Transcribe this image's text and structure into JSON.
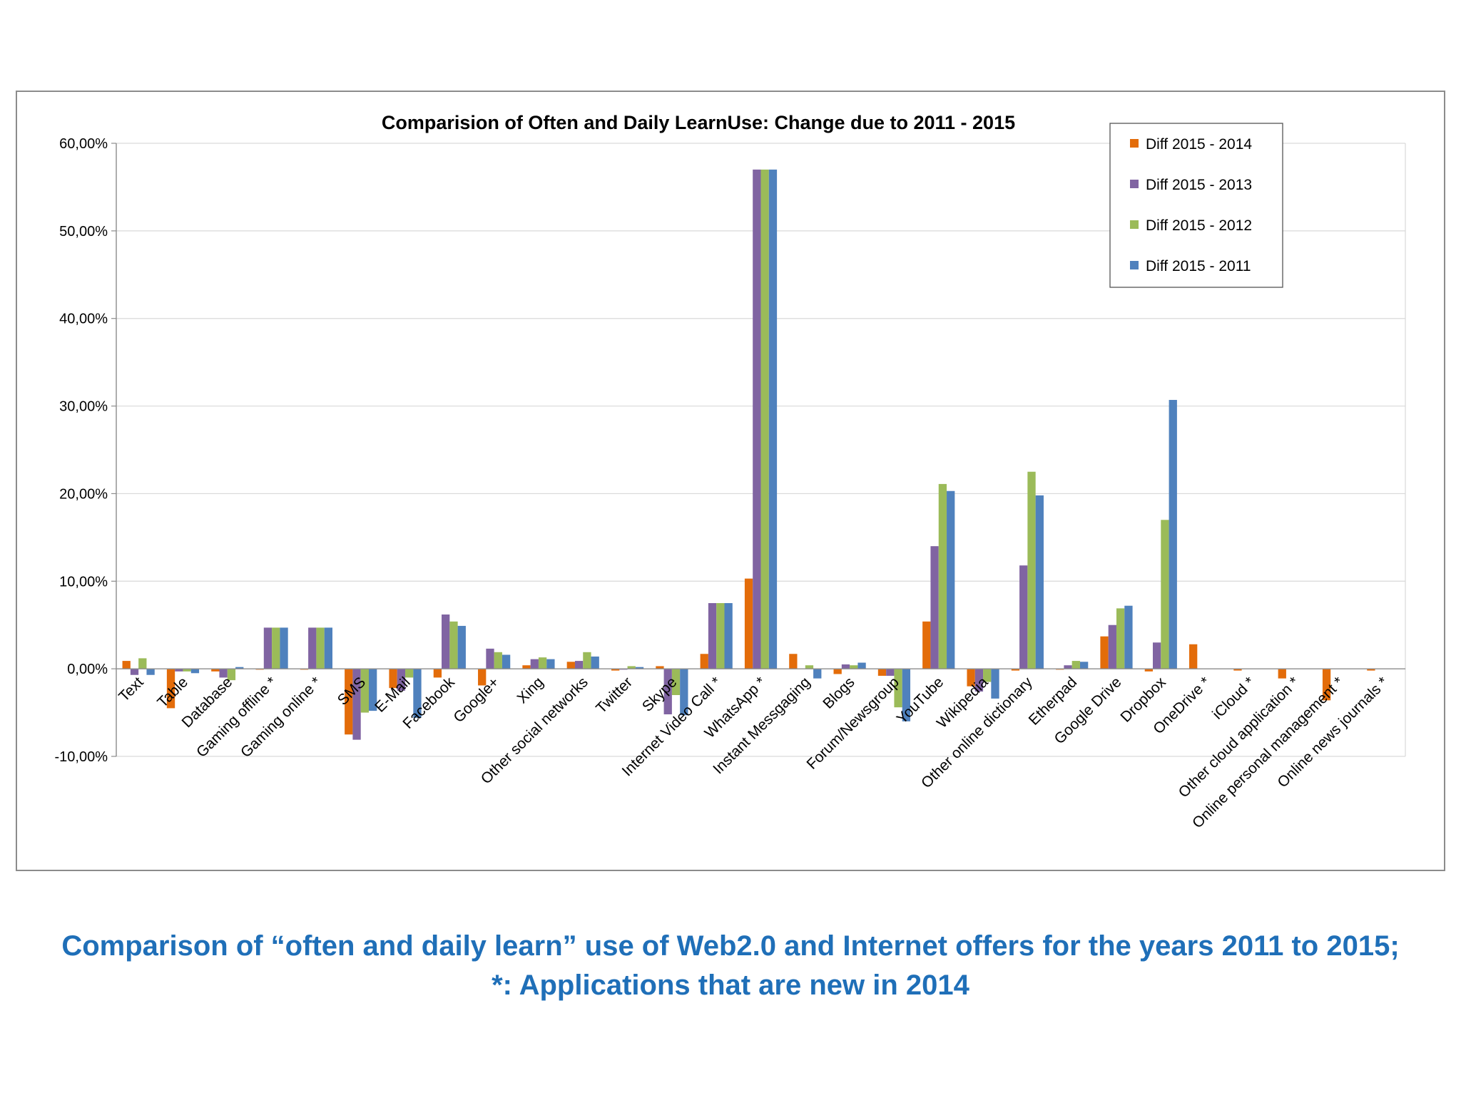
{
  "caption": {
    "line1": "Comparison of “often and daily learn” use of Web2.0 and Internet offers for the years 2011 to 2015;",
    "line2": "*: Applications that are new in 2014"
  },
  "colors": {
    "series": [
      "#e36c0a",
      "#8064a2",
      "#9bbb59",
      "#4f81bd"
    ],
    "caption": "#1f6fb8",
    "grid": "#d9d9d9"
  },
  "chart_data": {
    "type": "bar",
    "title": "Comparision of Often and Daily LearnUse: Change due to 2011 - 2015",
    "xlabel": "",
    "ylabel": "",
    "ylim": [
      -0.1,
      0.6
    ],
    "yticks": [
      -0.1,
      0.0,
      0.1,
      0.2,
      0.3,
      0.4,
      0.5,
      0.6
    ],
    "ytick_labels": [
      "-10,00%",
      "0,00%",
      "10,00%",
      "20,00%",
      "30,00%",
      "40,00%",
      "50,00%",
      "60,00%"
    ],
    "grid": true,
    "legend_position": "top-right",
    "categories": [
      "Text",
      "Table",
      "Database",
      "Gaming offline *",
      "Gaming online *",
      "SMS",
      "E-Mail",
      "Facebook",
      "Google+",
      "Xing",
      "Other social networks",
      "Twitter",
      "Skype",
      "Internet Video Call *",
      "WhatsApp *",
      "Instant Messgaging",
      "Blogs",
      "Forum/Newsgroup",
      "YouTube",
      "Wikipedia",
      "Other online dictionary",
      "Etherpad",
      "Google Drive",
      "Dropbox",
      "OneDrive *",
      "iCloud *",
      "Other cloud application *",
      "Online personal management *",
      "Online news journals *"
    ],
    "series": [
      {
        "name": "Diff 2015 - 2014",
        "values": [
          0.009,
          -0.045,
          -0.003,
          -0.001,
          -0.001,
          -0.075,
          -0.022,
          -0.01,
          -0.019,
          0.004,
          0.008,
          -0.002,
          0.003,
          0.017,
          0.103,
          0.017,
          -0.006,
          -0.008,
          0.054,
          -0.02,
          -0.002,
          -0.001,
          0.037,
          -0.003,
          0.028,
          -0.002,
          -0.011,
          -0.036,
          -0.002
        ]
      },
      {
        "name": "Diff 2015 - 2013",
        "values": [
          -0.007,
          -0.003,
          -0.01,
          0.047,
          0.047,
          -0.081,
          -0.025,
          0.062,
          0.023,
          0.011,
          0.009,
          -0.001,
          -0.052,
          0.075,
          0.57,
          0.0,
          0.005,
          -0.008,
          0.14,
          -0.026,
          0.118,
          0.004,
          0.05,
          0.03,
          0.0,
          0.0,
          0.0,
          0.0,
          0.0
        ]
      },
      {
        "name": "Diff 2015 - 2012",
        "values": [
          0.012,
          -0.003,
          -0.013,
          0.047,
          0.047,
          -0.05,
          -0.01,
          0.054,
          0.019,
          0.013,
          0.019,
          0.003,
          -0.03,
          0.075,
          0.57,
          0.004,
          0.004,
          -0.044,
          0.211,
          -0.015,
          0.225,
          0.009,
          0.069,
          0.17,
          0.0,
          0.0,
          0.0,
          0.0,
          0.0
        ]
      },
      {
        "name": "Diff 2015 - 2011",
        "values": [
          -0.007,
          -0.005,
          0.002,
          0.047,
          0.047,
          -0.048,
          -0.056,
          0.049,
          0.016,
          0.011,
          0.014,
          0.002,
          -0.053,
          0.075,
          0.57,
          -0.011,
          0.007,
          -0.06,
          0.203,
          -0.034,
          0.198,
          0.008,
          0.072,
          0.307,
          0.0,
          0.0,
          0.0,
          0.0,
          0.0
        ]
      }
    ]
  }
}
